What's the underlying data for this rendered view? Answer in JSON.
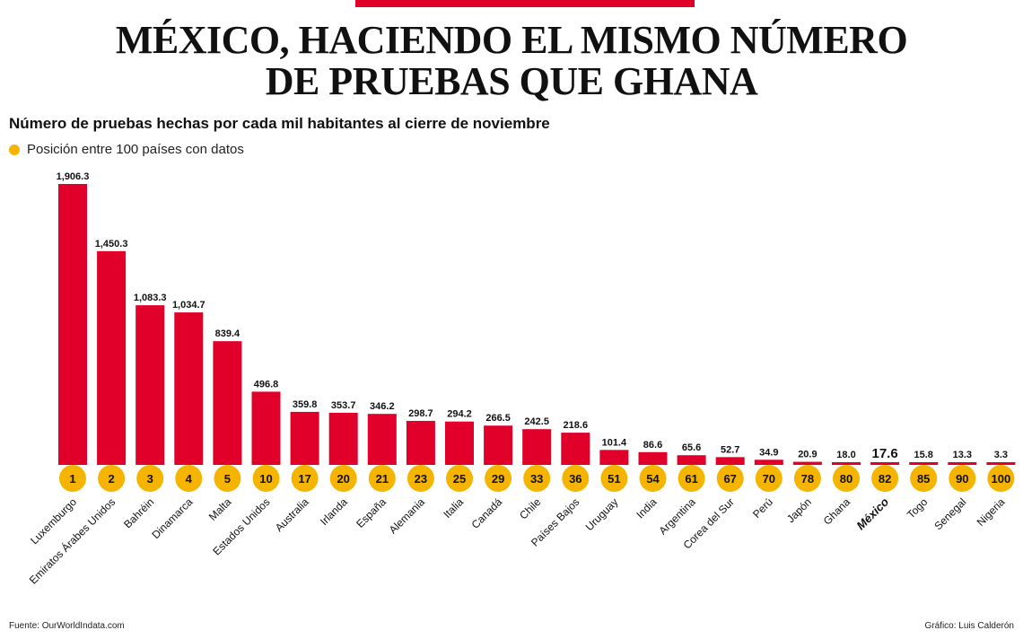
{
  "header": {
    "title_line1": "MÉXICO, HACIENDO EL MISMO NÚMERO",
    "title_line2": "DE PRUEBAS QUE GHANA",
    "subtitle": "Número de pruebas hechas por cada mil habitantes al cierre de noviembre",
    "legend_label": "Posición entre 100 países con datos"
  },
  "footer": {
    "source": "Fuente: OurWorldIndata.com",
    "credit": "Gráfico: Luis Calderón"
  },
  "colors": {
    "bar": "#e0002a",
    "rank_marker": "#f5b400",
    "accent": "#e0002a"
  },
  "chart_data": {
    "type": "bar",
    "title": "MÉXICO, HACIENDO EL MISMO NÚMERO DE PRUEBAS QUE GHANA",
    "subtitle": "Número de pruebas hechas por cada mil habitantes al cierre de noviembre",
    "categories": [
      "Luxemburgo",
      "Emiratos Árabes Unidos",
      "Bahréin",
      "Dinamarca",
      "Malta",
      "Estados Unidos",
      "Australia",
      "Irlanda",
      "España",
      "Alemania",
      "Italia",
      "Canadá",
      "Chile",
      "Países Bajos",
      "Uruguay",
      "India",
      "Argentina",
      "Corea del Sur",
      "Perú",
      "Japón",
      "Ghana",
      "México",
      "Togo",
      "Senegal",
      "Nigeria"
    ],
    "values": [
      1906.3,
      1450.3,
      1083.3,
      1034.7,
      839.4,
      496.8,
      359.8,
      353.7,
      346.2,
      298.7,
      294.2,
      266.5,
      242.5,
      218.6,
      101.4,
      86.6,
      65.6,
      52.7,
      34.9,
      20.9,
      18.0,
      17.6,
      15.8,
      13.3,
      3.3
    ],
    "value_labels": [
      "1,906.3",
      "1,450.3",
      "1,083.3",
      "1,034.7",
      "839.4",
      "496.8",
      "359.8",
      "353.7",
      "346.2",
      "298.7",
      "294.2",
      "266.5",
      "242.5",
      "218.6",
      "101.4",
      "86.6",
      "65.6",
      "52.7",
      "34.9",
      "20.9",
      "18.0",
      "17.6",
      "15.8",
      "13.3",
      "3.3"
    ],
    "ranks": [
      1,
      2,
      3,
      4,
      5,
      10,
      17,
      20,
      21,
      23,
      25,
      29,
      33,
      36,
      51,
      54,
      61,
      67,
      70,
      78,
      80,
      82,
      85,
      90,
      100
    ],
    "highlight": "México",
    "xlabel": "",
    "ylabel": "",
    "ylim": [
      0,
      1906.3
    ],
    "grid": false,
    "legend": "top-left"
  }
}
